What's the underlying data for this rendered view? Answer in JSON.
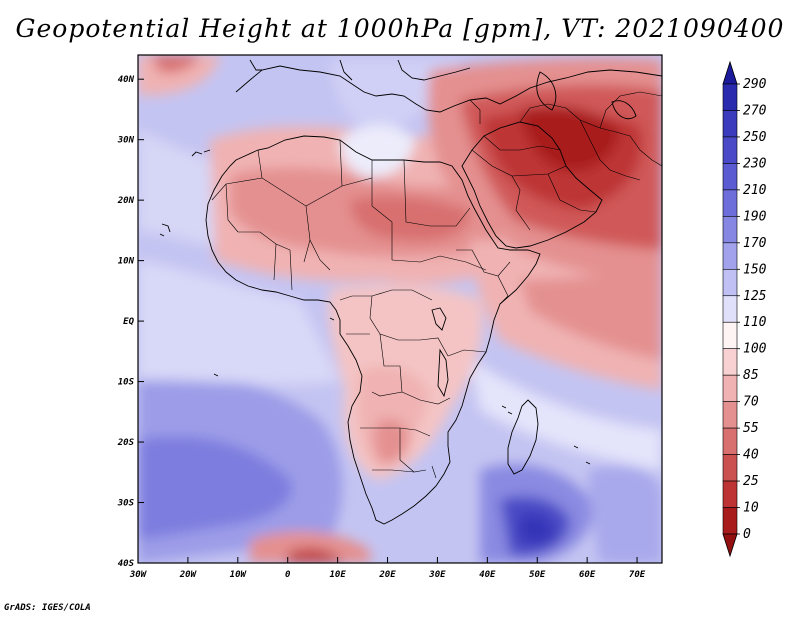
{
  "title": "Geopotential Height at 1000hPa [gpm], VT: 2021090400",
  "credit": "GrADS: IGES/COLA",
  "axes": {
    "lat_ticks": [
      {
        "value": 40,
        "label": "40N"
      },
      {
        "value": 30,
        "label": "30N"
      },
      {
        "value": 20,
        "label": "20N"
      },
      {
        "value": 10,
        "label": "10N"
      },
      {
        "value": 0,
        "label": "EQ"
      },
      {
        "value": -10,
        "label": "10S"
      },
      {
        "value": -20,
        "label": "20S"
      },
      {
        "value": -30,
        "label": "30S"
      },
      {
        "value": -40,
        "label": "40S"
      }
    ],
    "lon_ticks": [
      {
        "value": -30,
        "label": "30W"
      },
      {
        "value": -20,
        "label": "20W"
      },
      {
        "value": -10,
        "label": "10W"
      },
      {
        "value": 0,
        "label": "0"
      },
      {
        "value": 10,
        "label": "10E"
      },
      {
        "value": 20,
        "label": "20E"
      },
      {
        "value": 30,
        "label": "30E"
      },
      {
        "value": 40,
        "label": "40E"
      },
      {
        "value": 50,
        "label": "50E"
      },
      {
        "value": 60,
        "label": "60E"
      },
      {
        "value": 70,
        "label": "70E"
      }
    ],
    "lon_range": [
      -30,
      75
    ],
    "lat_range": [
      -40,
      44
    ]
  },
  "colorbar": {
    "levels": [
      "290",
      "270",
      "250",
      "230",
      "210",
      "190",
      "170",
      "150",
      "125",
      "110",
      "100",
      "85",
      "70",
      "55",
      "40",
      "25",
      "10",
      "0"
    ],
    "colors": [
      "#1a1a9a",
      "#2a2aae",
      "#3b3bbd",
      "#4a4ac8",
      "#5a5ad2",
      "#6e6eda",
      "#8686e3",
      "#a2a2ec",
      "#c0c0f4",
      "#e0e0fa",
      "#fff4f4",
      "#f8d2d2",
      "#f0b2b2",
      "#e49090",
      "#d87070",
      "#cb5050",
      "#be3434",
      "#a81c1c",
      "#921010"
    ]
  }
}
